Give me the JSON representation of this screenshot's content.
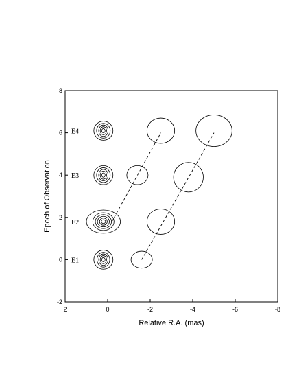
{
  "chart_data": {
    "type": "scatter",
    "xlabel": "Relative R.A. (mas)",
    "ylabel": "Epoch of Observation",
    "xlim": [
      2,
      -8
    ],
    "ylim": [
      -2,
      8
    ],
    "x_ticks": [
      "2",
      "0",
      "-2",
      "-4",
      "-6",
      "-8"
    ],
    "y_ticks": [
      "-2",
      "0",
      "2",
      "4",
      "6",
      "8"
    ],
    "grid": false,
    "epoch_labels": [
      {
        "label": "E1",
        "y": 0
      },
      {
        "label": "E2",
        "y": 1.8
      },
      {
        "label": "E3",
        "y": 4
      },
      {
        "label": "E4",
        "y": 6.1
      }
    ],
    "core_contours": [
      {
        "epoch": "E1",
        "x": 0.2,
        "y": 0,
        "ellipse_x_extent": [
          0.45,
          0.3,
          0.22,
          0.15,
          0.08
        ],
        "ellipse_y_extent": [
          0.45,
          0.35,
          0.27,
          0.19,
          0.1
        ]
      },
      {
        "epoch": "E2",
        "x": 0.2,
        "y": 1.8,
        "ellipse_x_extent": [
          0.8,
          0.5,
          0.38,
          0.28,
          0.18,
          0.1
        ],
        "ellipse_y_extent": [
          0.55,
          0.42,
          0.33,
          0.25,
          0.17,
          0.09
        ]
      },
      {
        "epoch": "E3",
        "x": 0.2,
        "y": 4,
        "ellipse_x_extent": [
          0.45,
          0.32,
          0.22,
          0.15,
          0.08
        ],
        "ellipse_y_extent": [
          0.45,
          0.35,
          0.27,
          0.19,
          0.1
        ]
      },
      {
        "epoch": "E4",
        "x": 0.2,
        "y": 6.1,
        "ellipse_x_extent": [
          0.45,
          0.32,
          0.22,
          0.15,
          0.08
        ],
        "ellipse_y_extent": [
          0.45,
          0.35,
          0.27,
          0.19,
          0.1
        ]
      }
    ],
    "components": [
      {
        "x": -1.6,
        "y": 0,
        "x_extent": 0.5,
        "y_extent": 0.4
      },
      {
        "x": -2.5,
        "y": 1.8,
        "x_extent": 0.65,
        "y_extent": 0.6
      },
      {
        "x": -1.4,
        "y": 4,
        "x_extent": 0.5,
        "y_extent": 0.45
      },
      {
        "x": -3.8,
        "y": 3.9,
        "x_extent": 0.7,
        "y_extent": 0.7
      },
      {
        "x": -2.5,
        "y": 6.1,
        "x_extent": 0.65,
        "y_extent": 0.6
      },
      {
        "x": -5,
        "y": 6.1,
        "x_extent": 0.85,
        "y_extent": 0.75
      }
    ],
    "trajectories": [
      {
        "from": [
          -0.2,
          1.8
        ],
        "to": [
          -2.5,
          6
        ]
      },
      {
        "from": [
          -1.6,
          0
        ],
        "to": [
          -5,
          6
        ]
      }
    ]
  }
}
